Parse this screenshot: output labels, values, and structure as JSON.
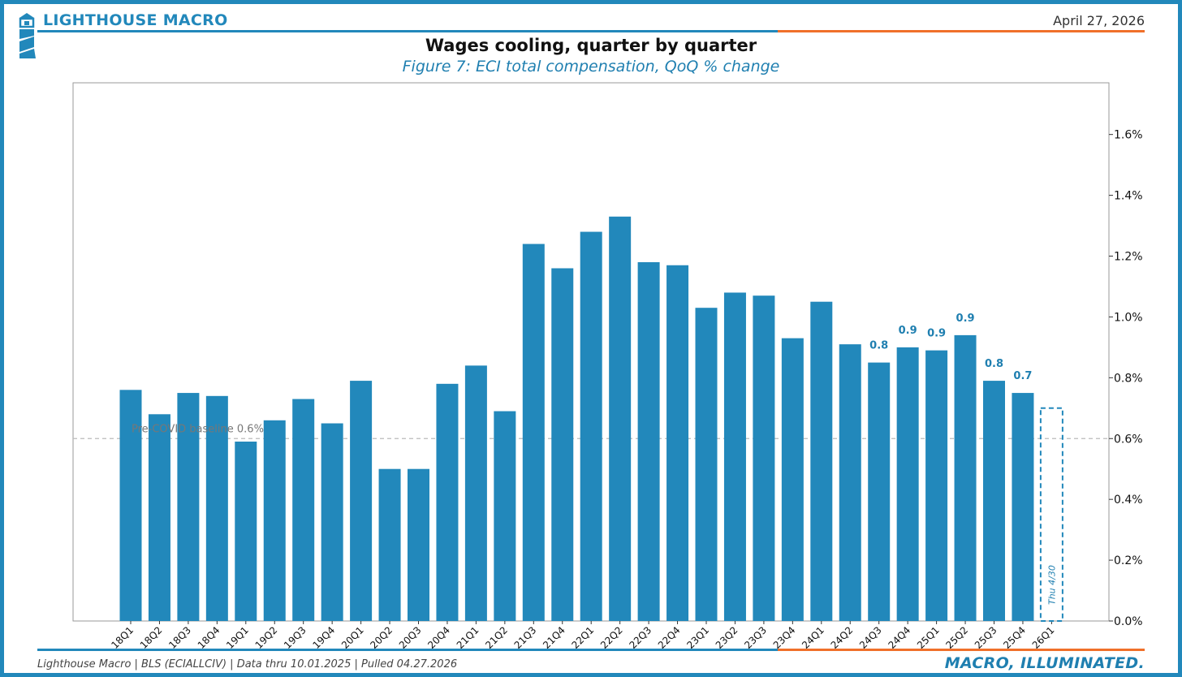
{
  "header": {
    "brand": "LIGHTHOUSE MACRO",
    "date": "April 27, 2026",
    "title": "Wages cooling, quarter by quarter",
    "subtitle": "Figure 7: ECI total compensation, QoQ % change"
  },
  "footer": {
    "source": "Lighthouse Macro | BLS (ECIALLCIV) | Data thru 10.01.2025 | Pulled 04.27.2026",
    "tagline": "MACRO, ILLUMINATED."
  },
  "colors": {
    "bar": "#2288bb",
    "accent_blue": "#2288bb",
    "accent_orange": "#f0702a",
    "label": "#1f7fb0",
    "baseline": "#bbbbbb"
  },
  "chart_data": {
    "type": "bar",
    "categories": [
      "18Q1",
      "18Q2",
      "18Q3",
      "18Q4",
      "19Q1",
      "19Q2",
      "19Q3",
      "19Q4",
      "20Q1",
      "20Q2",
      "20Q3",
      "20Q4",
      "21Q1",
      "21Q2",
      "21Q3",
      "21Q4",
      "22Q1",
      "22Q2",
      "22Q3",
      "22Q4",
      "23Q1",
      "23Q2",
      "23Q3",
      "23Q4",
      "24Q1",
      "24Q2",
      "24Q3",
      "24Q4",
      "25Q1",
      "25Q2",
      "25Q3",
      "25Q4",
      "26Q1"
    ],
    "values": [
      0.76,
      0.68,
      0.75,
      0.74,
      0.59,
      0.66,
      0.73,
      0.65,
      0.79,
      0.5,
      0.5,
      0.78,
      0.84,
      0.69,
      1.24,
      1.16,
      1.28,
      1.33,
      1.18,
      1.17,
      1.03,
      1.08,
      1.07,
      0.93,
      1.05,
      0.91,
      0.85,
      0.9,
      0.89,
      0.94,
      0.79,
      0.75,
      null
    ],
    "data_labels": [
      null,
      null,
      null,
      null,
      null,
      null,
      null,
      null,
      null,
      null,
      null,
      null,
      null,
      null,
      null,
      null,
      null,
      null,
      null,
      null,
      null,
      null,
      null,
      null,
      null,
      null,
      "0.8",
      "0.9",
      "0.9",
      "0.9",
      "0.8",
      "0.7",
      null
    ],
    "pending": {
      "category": "26Q1",
      "value": 0.7,
      "label": "Thu 4/30",
      "style": "dashed outline"
    },
    "baseline": {
      "value": 0.6,
      "label": "Pre-COVID baseline 0.6%"
    },
    "y_ticks": [
      "0.0%",
      "0.2%",
      "0.4%",
      "0.6%",
      "0.8%",
      "1.0%",
      "1.2%",
      "1.4%",
      "1.6%"
    ],
    "ylim": [
      0,
      1.77
    ],
    "y_axis_side": "right",
    "grid": false,
    "legend": "none"
  }
}
